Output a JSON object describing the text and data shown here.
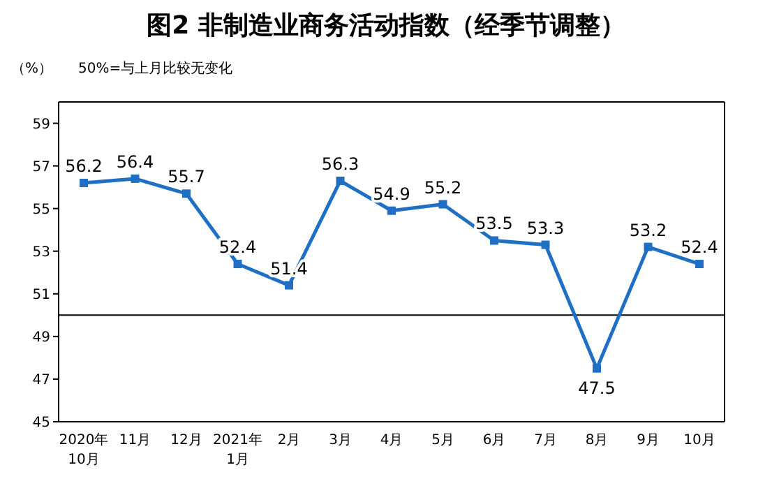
{
  "chart_data": {
    "type": "line",
    "title": "图2  非制造业商务活动指数（经季节调整）",
    "ylabel": "（%）",
    "annotations": [
      "50%=与上月比较无变化"
    ],
    "categories": [
      "2020年\n10月",
      "11月",
      "12月",
      "2021年\n1月",
      "2月",
      "3月",
      "4月",
      "5月",
      "6月",
      "7月",
      "8月",
      "9月",
      "10月"
    ],
    "series": [
      {
        "color": "#1f6fc4",
        "values": [
          56.2,
          56.4,
          55.7,
          52.4,
          51.4,
          56.3,
          54.9,
          55.2,
          53.5,
          53.3,
          47.5,
          53.2,
          52.4
        ]
      }
    ],
    "ylim": [
      45,
      60
    ],
    "yticks": [
      45,
      47,
      49,
      51,
      53,
      55,
      57,
      59
    ],
    "ref_lines": [
      {
        "axis": "y",
        "value": 50,
        "color": "#000000"
      }
    ],
    "data_labels": true,
    "marker": "square",
    "line_style": "solid",
    "grid": false,
    "legend": false
  }
}
